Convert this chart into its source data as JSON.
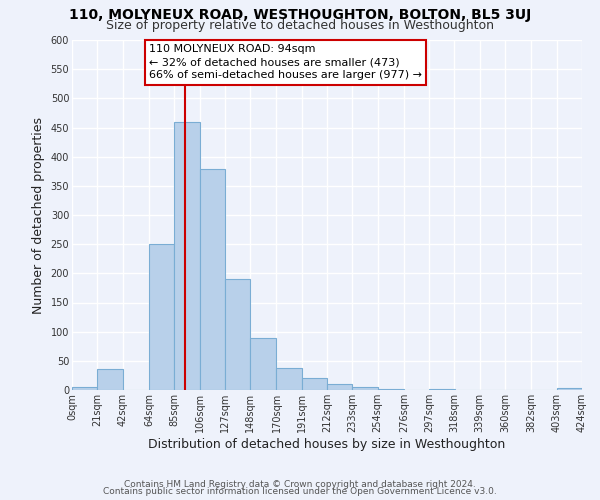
{
  "title": "110, MOLYNEUX ROAD, WESTHOUGHTON, BOLTON, BL5 3UJ",
  "subtitle": "Size of property relative to detached houses in Westhoughton",
  "xlabel": "Distribution of detached houses by size in Westhoughton",
  "ylabel": "Number of detached properties",
  "bin_edges": [
    0,
    21,
    42,
    64,
    85,
    106,
    127,
    148,
    170,
    191,
    212,
    233,
    254,
    276,
    297,
    318,
    339,
    360,
    382,
    403,
    424
  ],
  "bin_labels": [
    "0sqm",
    "21sqm",
    "42sqm",
    "64sqm",
    "85sqm",
    "106sqm",
    "127sqm",
    "148sqm",
    "170sqm",
    "191sqm",
    "212sqm",
    "233sqm",
    "254sqm",
    "276sqm",
    "297sqm",
    "318sqm",
    "339sqm",
    "360sqm",
    "382sqm",
    "403sqm",
    "424sqm"
  ],
  "counts": [
    5,
    36,
    0,
    251,
    460,
    379,
    190,
    90,
    38,
    20,
    10,
    6,
    2,
    0,
    1,
    0,
    0,
    0,
    0,
    4
  ],
  "bar_color": "#b8d0ea",
  "bar_edge_color": "#7aadd4",
  "vline_x": 94,
  "vline_color": "#cc0000",
  "annotation_title": "110 MOLYNEUX ROAD: 94sqm",
  "annotation_line1": "← 32% of detached houses are smaller (473)",
  "annotation_line2": "66% of semi-detached houses are larger (977) →",
  "annotation_box_edgecolor": "#cc0000",
  "ylim": [
    0,
    600
  ],
  "yticks": [
    0,
    50,
    100,
    150,
    200,
    250,
    300,
    350,
    400,
    450,
    500,
    550,
    600
  ],
  "footnote1": "Contains HM Land Registry data © Crown copyright and database right 2024.",
  "footnote2": "Contains public sector information licensed under the Open Government Licence v3.0.",
  "background_color": "#eef2fb",
  "plot_bg_color": "#eef2fb",
  "grid_color": "#ffffff",
  "title_fontsize": 10,
  "subtitle_fontsize": 9,
  "axis_label_fontsize": 9,
  "tick_fontsize": 7,
  "annotation_fontsize": 8,
  "footnote_fontsize": 6.5
}
